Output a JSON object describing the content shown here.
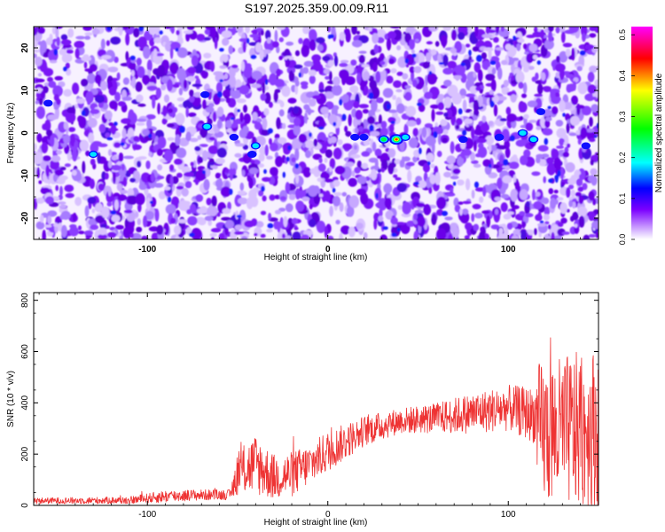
{
  "page": {
    "title": "S197.2025.359.00.09.R11"
  },
  "chart_data": [
    {
      "type": "heatmap",
      "name": "spectrogram",
      "xlabel": "Height of straight line (km)",
      "ylabel": "Frequency (Hz)",
      "xlim": [
        -163,
        150
      ],
      "ylim": [
        -25,
        25
      ],
      "x_ticks": [
        -100,
        0,
        100
      ],
      "x_tick_labels": [
        "-100",
        "0",
        "100"
      ],
      "y_ticks": [
        20,
        10,
        0,
        -10,
        -20
      ],
      "y_tick_labels": [
        "20",
        "10",
        "0",
        "-10",
        "-20"
      ],
      "colorbar": {
        "label": "Normalized spectral amplitude",
        "range": [
          0,
          0.52
        ],
        "ticks": [
          0.0,
          0.1,
          0.2,
          0.3,
          0.4,
          0.5
        ],
        "tick_labels": [
          "0.0",
          "0.1",
          "0.2",
          "0.3",
          "0.4",
          "0.5"
        ],
        "colormap": [
          "#ffffff",
          "#7b00ff",
          "#0000ff",
          "#00ffff",
          "#00ff00",
          "#ffff00",
          "#ff0000",
          "#ff00ff"
        ]
      },
      "hotspots": [
        {
          "x": -130,
          "y": -5,
          "value": 0.14
        },
        {
          "x": -155,
          "y": 7,
          "value": 0.12
        },
        {
          "x": -67,
          "y": 1.5,
          "value": 0.18
        },
        {
          "x": -68,
          "y": 9,
          "value": 0.12
        },
        {
          "x": -52,
          "y": -1,
          "value": 0.12
        },
        {
          "x": -40,
          "y": -3,
          "value": 0.15
        },
        {
          "x": -42,
          "y": -5,
          "value": 0.13
        },
        {
          "x": 15,
          "y": -1,
          "value": 0.12
        },
        {
          "x": 20,
          "y": -1,
          "value": 0.12
        },
        {
          "x": 31,
          "y": -1.5,
          "value": 0.22
        },
        {
          "x": 38,
          "y": -1.5,
          "value": 0.4
        },
        {
          "x": 43,
          "y": -1,
          "value": 0.16
        },
        {
          "x": 75,
          "y": -1.5,
          "value": 0.12
        },
        {
          "x": 95,
          "y": -1,
          "value": 0.13
        },
        {
          "x": 108,
          "y": 0,
          "value": 0.18
        },
        {
          "x": 114,
          "y": -1.5,
          "value": 0.16
        },
        {
          "x": 118,
          "y": 5,
          "value": 0.12
        },
        {
          "x": 143,
          "y": -3,
          "value": 0.12
        }
      ]
    },
    {
      "type": "line",
      "name": "snr",
      "xlabel": "Height of straight line (km)",
      "ylabel": "SNR (10 * v/v)",
      "xlim": [
        -163,
        150
      ],
      "ylim": [
        0,
        830
      ],
      "x_ticks": [
        -100,
        0,
        100
      ],
      "x_tick_labels": [
        "-100",
        "0",
        "100"
      ],
      "y_ticks": [
        0,
        200,
        400,
        600,
        800
      ],
      "y_tick_labels": [
        "0",
        "200",
        "400",
        "600",
        "800"
      ],
      "color": "#ee3333",
      "series": [
        {
          "name": "SNR",
          "envelope": [
            {
              "x": -163,
              "mean": 18,
              "spread": 12
            },
            {
              "x": -110,
              "mean": 20,
              "spread": 14
            },
            {
              "x": -90,
              "mean": 35,
              "spread": 25
            },
            {
              "x": -75,
              "mean": 40,
              "spread": 22
            },
            {
              "x": -54,
              "mean": 42,
              "spread": 20
            },
            {
              "x": -50,
              "mean": 130,
              "spread": 90
            },
            {
              "x": -40,
              "mean": 160,
              "spread": 120
            },
            {
              "x": -30,
              "mean": 110,
              "spread": 90
            },
            {
              "x": -20,
              "mean": 120,
              "spread": 90
            },
            {
              "x": -10,
              "mean": 160,
              "spread": 80
            },
            {
              "x": 0,
              "mean": 210,
              "spread": 80
            },
            {
              "x": 20,
              "mean": 290,
              "spread": 60
            },
            {
              "x": 40,
              "mean": 330,
              "spread": 50
            },
            {
              "x": 60,
              "mean": 340,
              "spread": 60
            },
            {
              "x": 80,
              "mean": 360,
              "spread": 80
            },
            {
              "x": 100,
              "mean": 380,
              "spread": 90
            },
            {
              "x": 115,
              "mean": 350,
              "spread": 110
            },
            {
              "x": 117,
              "mean": 280,
              "spread": 280
            },
            {
              "x": 150,
              "mean": 300,
              "spread": 320
            }
          ]
        }
      ]
    }
  ]
}
